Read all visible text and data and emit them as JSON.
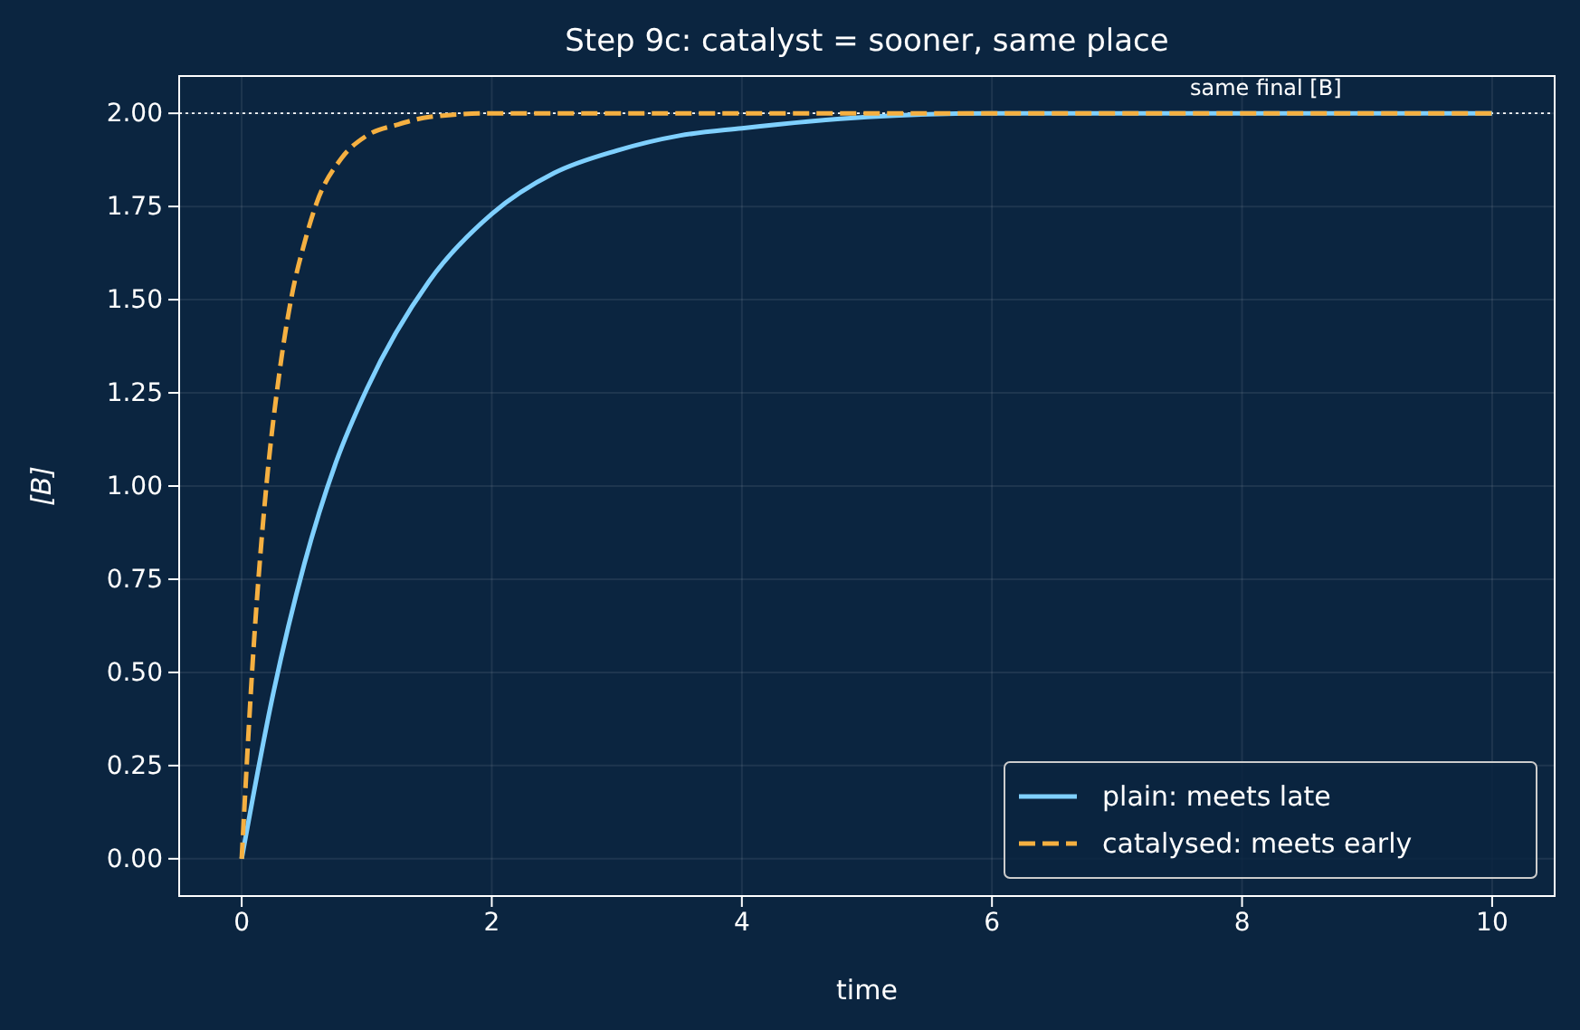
{
  "chart_data": {
    "type": "line",
    "title": "Step 9c: catalyst = sooner, same place",
    "xlabel": "time",
    "ylabel": "[B]",
    "xlim": [
      -0.5,
      10.5
    ],
    "xticks": [
      0,
      2,
      4,
      6,
      8,
      10
    ],
    "ylim": [
      -0.1,
      2.1
    ],
    "yticks": [
      {
        "value": 0,
        "label": "0.00"
      },
      {
        "value": 0.25,
        "label": "0.25"
      },
      {
        "value": 0.5,
        "label": "0.50"
      },
      {
        "value": 0.75,
        "label": "0.75"
      },
      {
        "value": 1,
        "label": "1.00"
      },
      {
        "value": 1.25,
        "label": "1.25"
      },
      {
        "value": 1.5,
        "label": "1.50"
      },
      {
        "value": 1.75,
        "label": "1.75"
      },
      {
        "value": 2,
        "label": "2.00"
      }
    ],
    "grid": true,
    "legend": "bottom right",
    "marker": "none",
    "ref_lines": [
      {
        "axis": "y",
        "value": 2,
        "label": "same final [B]",
        "color": "#ffffff",
        "line_style": "dotted"
      }
    ],
    "series": [
      {
        "name": "plain: meets late",
        "color": "#7fd0ff",
        "line_style": "solid",
        "x": [
          0,
          0.25,
          0.5,
          0.75,
          1,
          1.5,
          2,
          2.5,
          3,
          3.5,
          4,
          5,
          6,
          7,
          8,
          9,
          10
        ],
        "values": [
          0,
          0.44,
          0.79,
          1.06,
          1.26,
          1.55,
          1.73,
          1.84,
          1.9,
          1.94,
          1.96,
          1.99,
          2,
          2,
          2,
          2,
          2
        ]
      },
      {
        "name": "catalysed: meets early",
        "color": "#f5b041",
        "line_style": "dashed",
        "x": [
          0,
          0.1,
          0.2,
          0.3,
          0.4,
          0.5,
          0.6,
          0.8,
          1,
          1.25,
          1.5,
          2,
          3,
          4,
          6,
          8,
          10
        ],
        "values": [
          0,
          0.59,
          1.01,
          1.3,
          1.51,
          1.65,
          1.76,
          1.88,
          1.94,
          1.97,
          1.99,
          2,
          2,
          2,
          2,
          2,
          2
        ]
      }
    ]
  }
}
